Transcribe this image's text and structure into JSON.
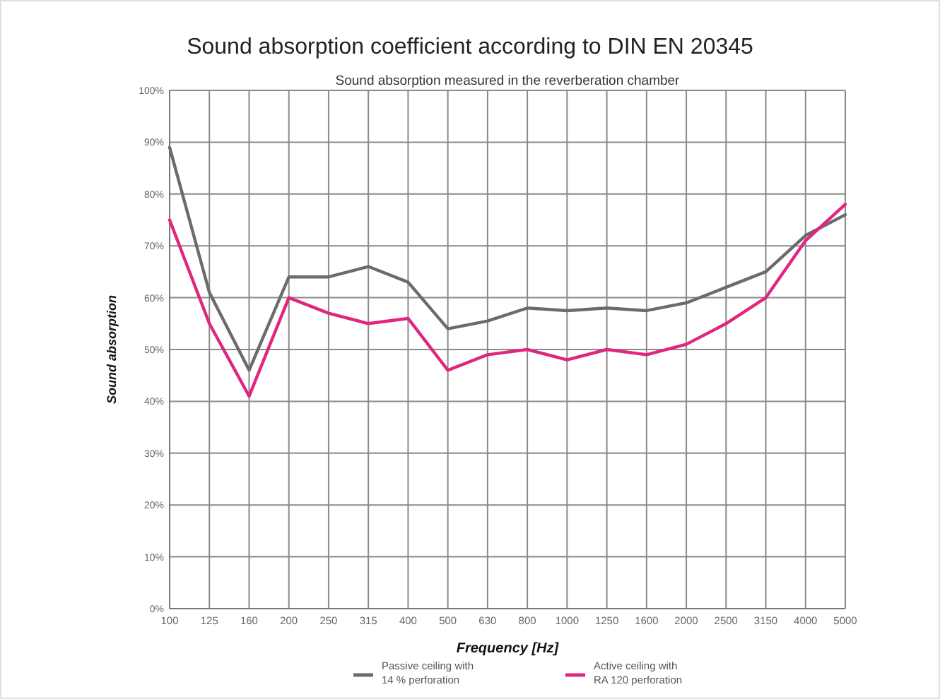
{
  "chart_data": {
    "type": "line",
    "title": "Sound absorption coefficient according to DIN EN 20345",
    "subtitle": "Sound absorption measured in the reverberation chamber",
    "xlabel": "Frequency [Hz]",
    "ylabel": "Sound absorption",
    "categories": [
      "100",
      "125",
      "160",
      "200",
      "250",
      "315",
      "400",
      "500",
      "630",
      "800",
      "1000",
      "1250",
      "1600",
      "2000",
      "2500",
      "3150",
      "4000",
      "5000"
    ],
    "series": [
      {
        "name": "Passive ceiling with 14 % perforation",
        "color": "#6b6b6b",
        "values": [
          89,
          61,
          46,
          64,
          64,
          66,
          63,
          54,
          55.5,
          58,
          57.5,
          58,
          57.5,
          59,
          62,
          65,
          72,
          76
        ]
      },
      {
        "name": "Active ceiling with RA 120 perforation",
        "color": "#e0267f",
        "values": [
          75,
          55,
          41,
          60,
          57,
          55,
          56,
          46,
          49,
          50,
          48,
          50,
          49,
          51,
          55,
          60,
          71,
          78
        ]
      }
    ],
    "ylim": [
      0,
      100
    ],
    "yticks": [
      {
        "value": 0,
        "label": "0%"
      },
      {
        "value": 10,
        "label": "10%"
      },
      {
        "value": 20,
        "label": "20%"
      },
      {
        "value": 30,
        "label": "30%"
      },
      {
        "value": 40,
        "label": "40%"
      },
      {
        "value": 50,
        "label": "50%"
      },
      {
        "value": 60,
        "label": "60%"
      },
      {
        "value": 70,
        "label": "70%"
      },
      {
        "value": 80,
        "label": "80%"
      },
      {
        "value": 90,
        "label": "90%"
      },
      {
        "value": 100,
        "label": "100%"
      }
    ],
    "grid": true,
    "legend": "bottom",
    "marker": "none",
    "line_style": "solid"
  }
}
